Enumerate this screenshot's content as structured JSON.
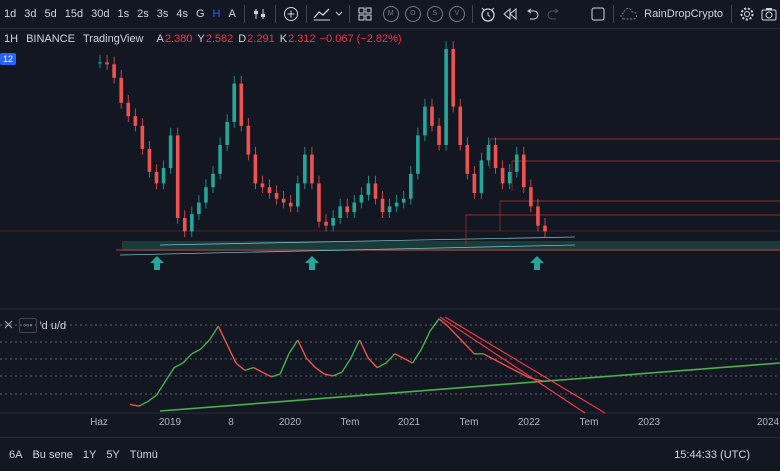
{
  "toolbar": {
    "intervals": [
      "1d",
      "3d",
      "5d",
      "15d",
      "30d",
      "1s",
      "2s",
      "3s",
      "4s",
      "G",
      "H",
      "A"
    ],
    "active_interval": "H",
    "circle_buttons": [
      "M",
      "O",
      "S",
      "V"
    ],
    "username": "RainDropCrypto"
  },
  "legend": {
    "interval": "1H",
    "exchange": "BINANCE",
    "brand": "TradingView",
    "ohlc": [
      {
        "k": "A",
        "v": "2.380"
      },
      {
        "k": "Y",
        "v": "2.582"
      },
      {
        "k": "D",
        "v": "2.291"
      },
      {
        "k": "K",
        "v": "2.312"
      }
    ],
    "change": "−0.067 (−2.82%)",
    "tag": "12"
  },
  "indicator": {
    "box_label": "◦◦◦",
    "name": "'d u/d"
  },
  "time_axis": [
    "Haz",
    "2019",
    "8",
    "2020",
    "Tem",
    "2021",
    "Tem",
    "2022",
    "Tem",
    "2023",
    "2024"
  ],
  "bottom": {
    "ranges": [
      "6A",
      "Bu sene",
      "1Y",
      "5Y",
      "Tümü"
    ],
    "clock": "15:44:33 (UTC)"
  },
  "colors": {
    "background": "#131722",
    "up": "#26a69a",
    "down": "#ef5350",
    "indicator_up": "#4caf50",
    "indicator_down": "#ef5350",
    "trend_green": "#4caf50",
    "support_zone": "#1b3a3a",
    "level_line": "#c2333a",
    "arrow": "#26a69a"
  },
  "chart_data": {
    "type": "candlestick",
    "x_labels": [
      "Haz",
      "2019",
      "8",
      "2020",
      "Tem",
      "2021",
      "Tem",
      "2022",
      "Tem",
      "2023",
      "2024"
    ],
    "series": [
      {
        "values": [
          0.93,
          0.92,
          0.85,
          0.72,
          0.65,
          0.6,
          0.48,
          0.36,
          0.3,
          0.38,
          0.55,
          0.12,
          0.05,
          0.14,
          0.2,
          0.28,
          0.35,
          0.5,
          0.62,
          0.82,
          0.6,
          0.45,
          0.3,
          0.28,
          0.25,
          0.22,
          0.2,
          0.18,
          0.3,
          0.45,
          0.3,
          0.1,
          0.08,
          0.12,
          0.18,
          0.15,
          0.2,
          0.24,
          0.3,
          0.22,
          0.15,
          0.18,
          0.2,
          0.22,
          0.35,
          0.55,
          0.7,
          0.6,
          0.5,
          1.0,
          0.7,
          0.5,
          0.35,
          0.25,
          0.42,
          0.5,
          0.38,
          0.3,
          0.36,
          0.45,
          0.28,
          0.18,
          0.08,
          0.05
        ]
      }
    ],
    "indicator_series": [
      0.05,
      0.03,
      0.08,
      0.15,
      0.3,
      0.45,
      0.5,
      0.6,
      0.65,
      0.75,
      0.9,
      0.7,
      0.5,
      0.42,
      0.45,
      0.4,
      0.35,
      0.38,
      0.6,
      0.75,
      0.55,
      0.45,
      0.38,
      0.36,
      0.4,
      0.55,
      0.75,
      0.55,
      0.45,
      0.5,
      0.6,
      0.55,
      0.5,
      0.65,
      0.85,
      0.98,
      0.9,
      0.8,
      0.7,
      0.6,
      0.6,
      0.55,
      0.5,
      0.45,
      0.4,
      0.35,
      0.32,
      0.3
    ]
  }
}
